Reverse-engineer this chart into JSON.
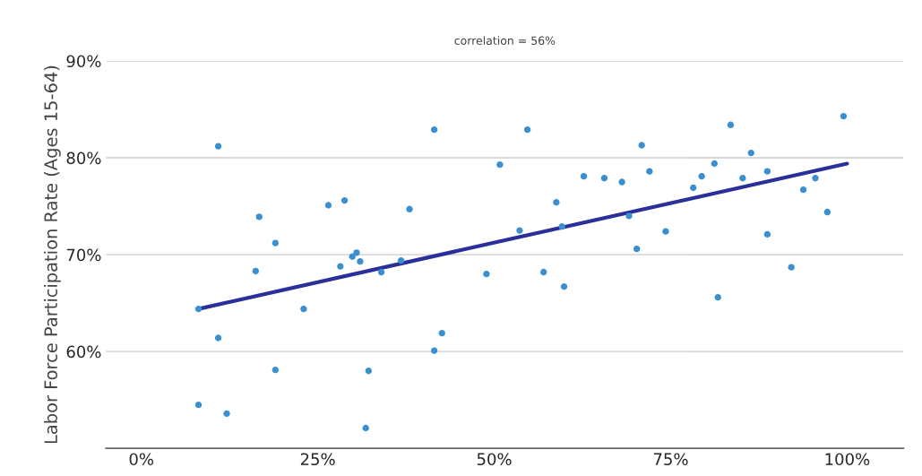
{
  "chart_data": {
    "type": "scatter",
    "ylabel": "Labor Force Participation Rate (Ages 15-64)",
    "annotations": [
      "correlation = 56%"
    ],
    "xlim": [
      -5,
      108
    ],
    "ylim": [
      50,
      90
    ],
    "xticks": [
      {
        "value": 0,
        "label": "0%"
      },
      {
        "value": 25,
        "label": "25%"
      },
      {
        "value": 50,
        "label": "50%"
      },
      {
        "value": 75,
        "label": "75%"
      },
      {
        "value": 100,
        "label": "100%"
      }
    ],
    "yticks": [
      {
        "value": 60,
        "label": "60%"
      },
      {
        "value": 70,
        "label": "70%"
      },
      {
        "value": 80,
        "label": "80%"
      },
      {
        "value": 90,
        "label": "90%"
      }
    ],
    "grid": "y",
    "series": [
      {
        "color": "#3a8fd0",
        "marker": "circle",
        "x": [
          8.1,
          8.1,
          10.9,
          19.0,
          23.0,
          12.1,
          28.2,
          29.9,
          30.5,
          31.0,
          34.0,
          32.2,
          31.8,
          42.6,
          41.5,
          48.9,
          10.9,
          16.7,
          16.2,
          19.0,
          26.5,
          28.8,
          38.0,
          41.5,
          54.7,
          50.8,
          53.6,
          36.8,
          99.5,
          83.5,
          70.9,
          86.4,
          62.7,
          65.6,
          68.1,
          72.0,
          81.2,
          79.4,
          78.2,
          85.2,
          88.7,
          95.5,
          93.8,
          97.2,
          58.8,
          59.6,
          69.1,
          74.3,
          70.2,
          88.7,
          57.0,
          92.1,
          59.9,
          81.7
        ],
        "values": [
          64.4,
          54.5,
          61.4,
          58.1,
          64.4,
          53.6,
          68.8,
          69.8,
          70.2,
          69.3,
          68.2,
          58.0,
          52.1,
          61.9,
          60.1,
          68.0,
          81.2,
          73.9,
          68.3,
          71.2,
          75.1,
          75.6,
          74.7,
          82.9,
          82.9,
          79.3,
          72.5,
          69.4,
          84.3,
          83.4,
          81.3,
          80.5,
          78.1,
          77.9,
          77.5,
          78.6,
          79.4,
          78.1,
          76.9,
          77.9,
          78.6,
          77.9,
          76.7,
          74.4,
          75.4,
          72.9,
          74.0,
          72.4,
          70.6,
          72.1,
          68.2,
          68.7,
          66.7,
          65.6
        ]
      },
      {
        "type": "line",
        "color": "#2b2f9a",
        "x": [
          8.1,
          100
        ],
        "values": [
          64.4,
          79.4
        ],
        "marker": "none",
        "line_style": "solid"
      }
    ]
  }
}
